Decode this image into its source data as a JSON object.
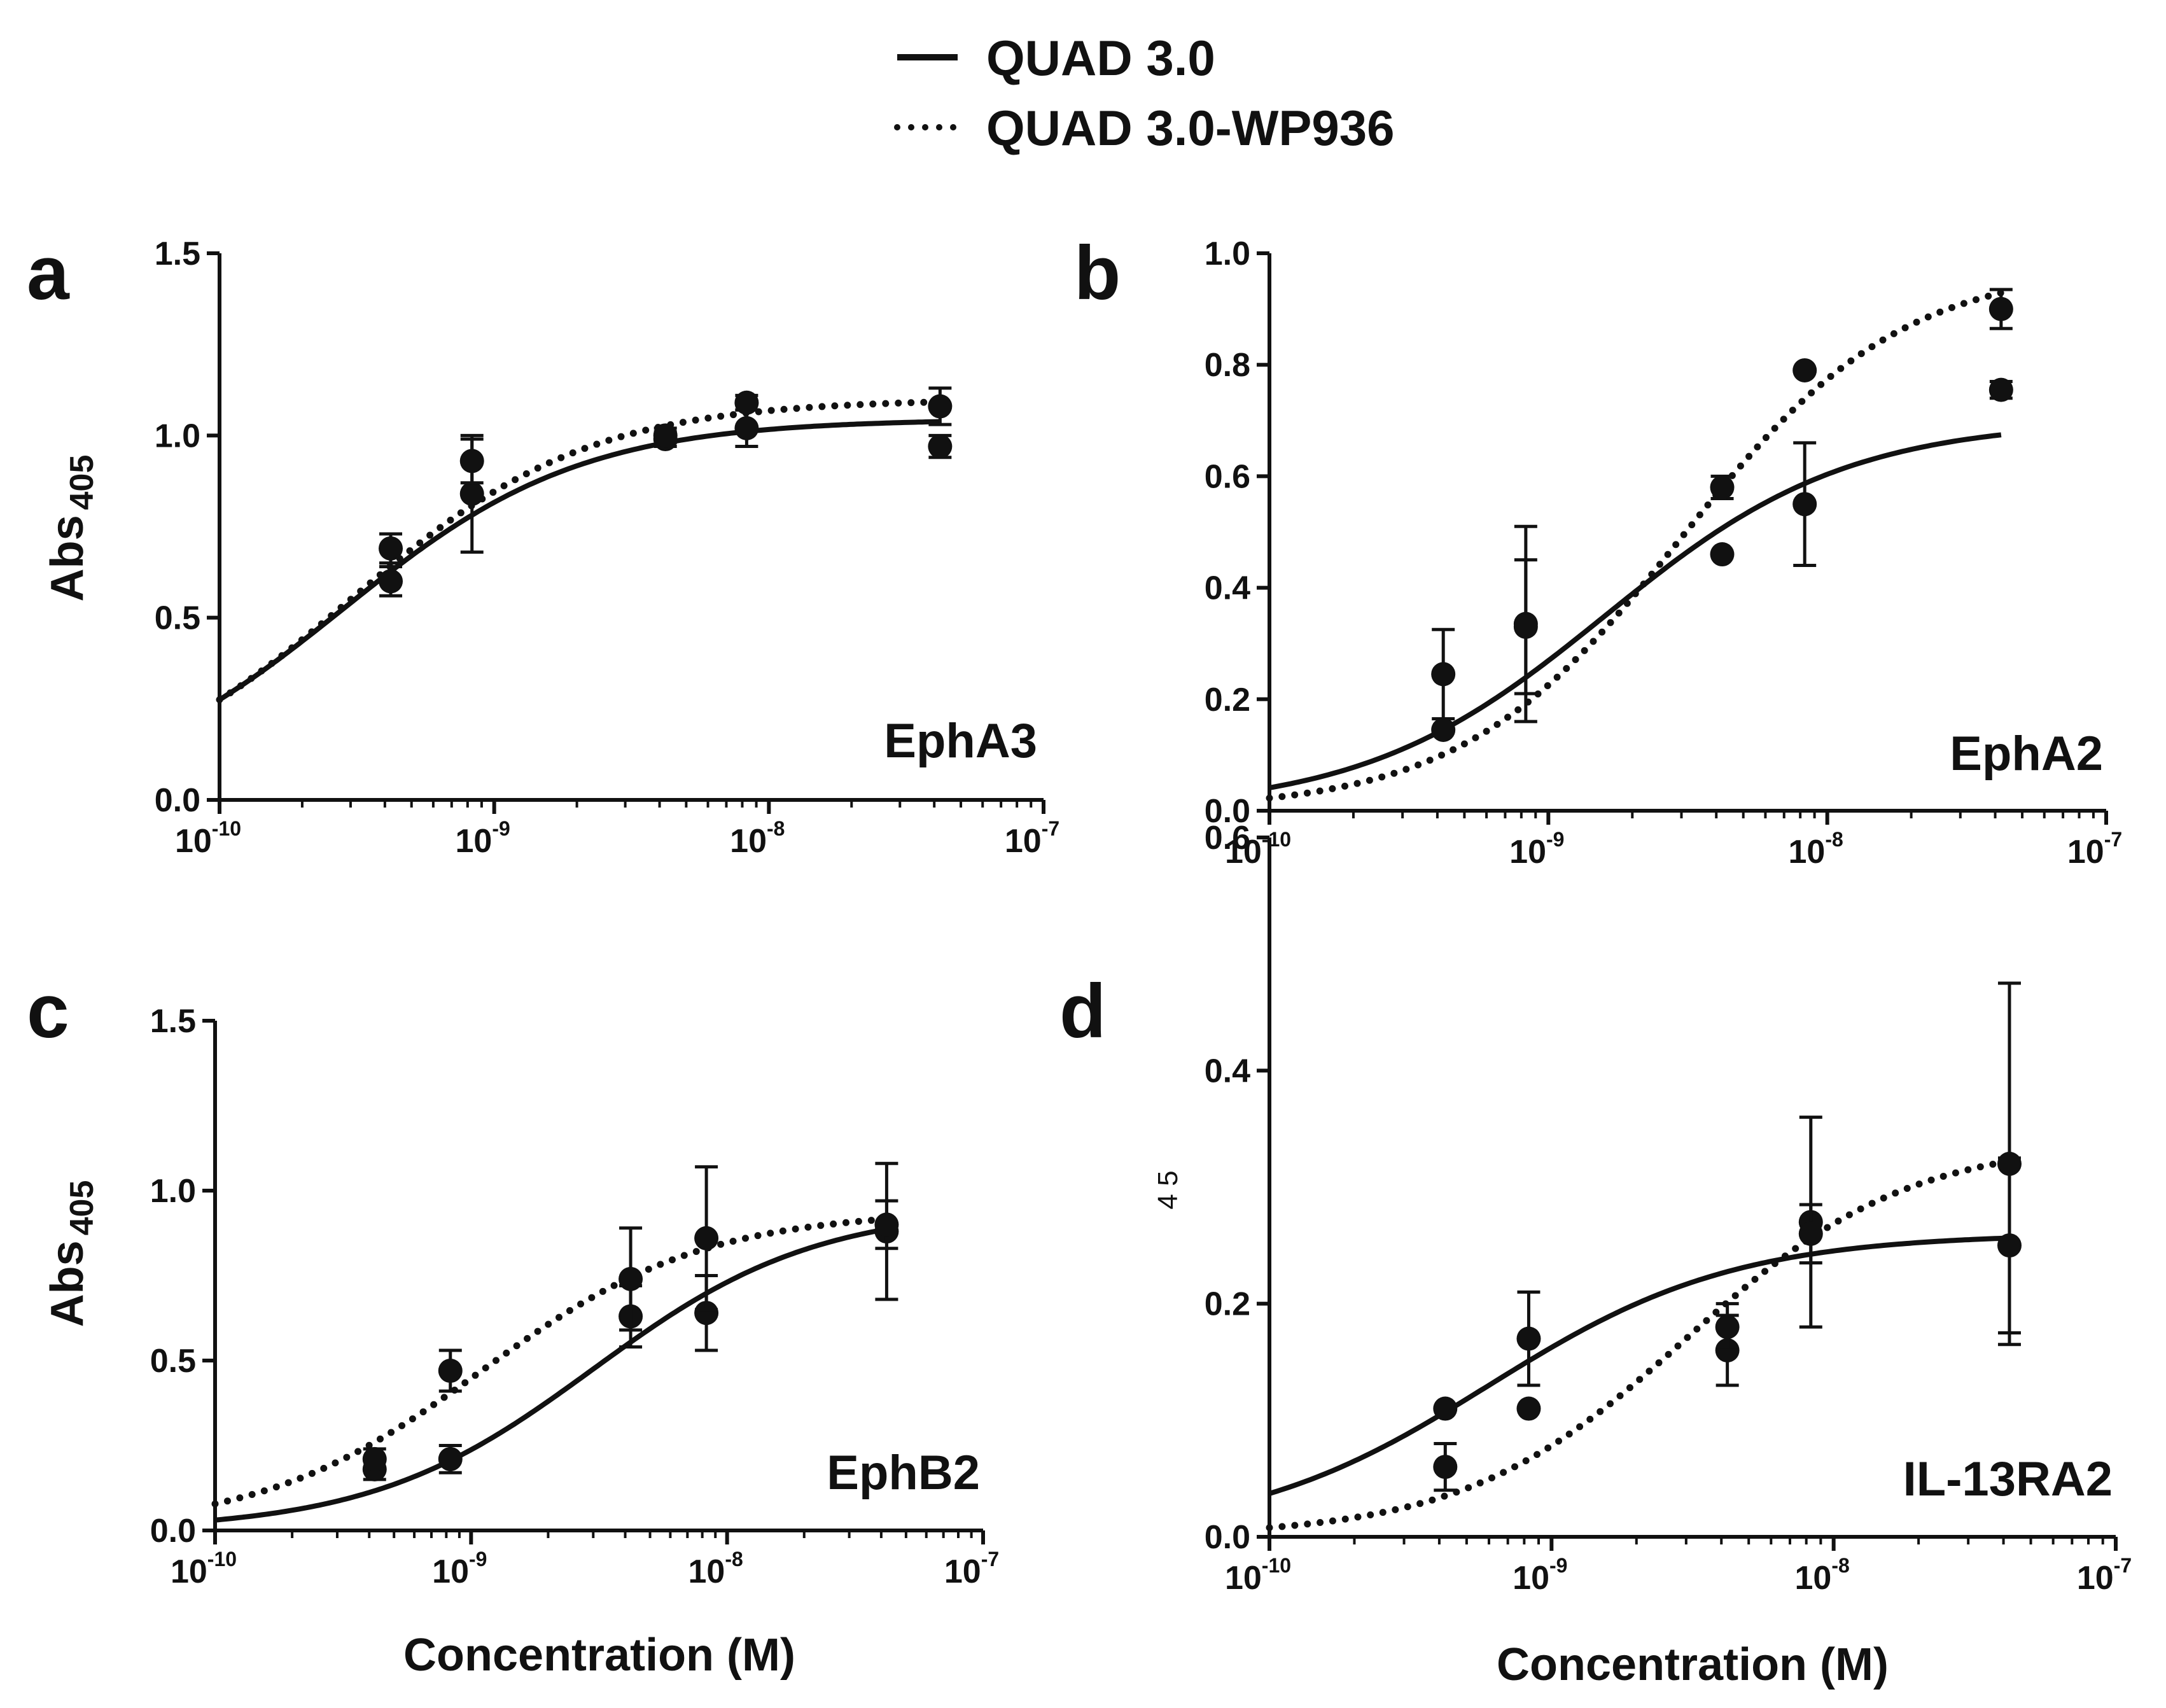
{
  "legend": [
    {
      "label": "QUAD 3.0",
      "style": "solid"
    },
    {
      "label": "QUAD 3.0-WP936",
      "style": "dotted"
    }
  ],
  "chart_data": [
    {
      "type": "scatter",
      "panel": "a",
      "target_label": "EphA3",
      "xlabel": "",
      "ylabel": "Abs",
      "ylabel_sub": "405",
      "xscale": "log",
      "xlim": [
        1e-10,
        1e-07
      ],
      "ylim": [
        0,
        1.5
      ],
      "yticks": [
        "0.0",
        "0.5",
        "1.0",
        "1.5"
      ],
      "xticks": [
        {
          "base": "10",
          "exp": "-10"
        },
        {
          "base": "10",
          "exp": "-9"
        },
        {
          "base": "10",
          "exp": "-8"
        },
        {
          "base": "10",
          "exp": "-7"
        }
      ],
      "series": [
        {
          "name": "QUAD 3.0",
          "style": "solid",
          "points": [
            {
              "x": 4.2e-10,
              "y": 0.6,
              "err": 0.04
            },
            {
              "x": 8.3e-10,
              "y": 0.84,
              "err": 0.16
            },
            {
              "x": 4.2e-09,
              "y": 0.99,
              "err": 0.02
            },
            {
              "x": 8.3e-09,
              "y": 1.02,
              "err": 0.05
            },
            {
              "x": 4.2e-08,
              "y": 0.97,
              "err": 0.03
            }
          ],
          "fit": {
            "bottom": 0.0,
            "top": 1.045,
            "ec50": 2.8e-10,
            "hill": 1.0
          }
        },
        {
          "name": "QUAD 3.0-WP936",
          "style": "dotted",
          "points": [
            {
              "x": 4.2e-10,
              "y": 0.69,
              "err": 0.04
            },
            {
              "x": 8.3e-10,
              "y": 0.93,
              "err": 0.06
            },
            {
              "x": 4.2e-09,
              "y": 1.0,
              "err": 0.02
            },
            {
              "x": 8.3e-09,
              "y": 1.09,
              "err": 0.02
            },
            {
              "x": 4.2e-08,
              "y": 1.08,
              "err": 0.05
            }
          ],
          "fit": {
            "bottom": 0.0,
            "top": 1.1,
            "ec50": 3e-10,
            "hill": 1.0
          }
        }
      ]
    },
    {
      "type": "scatter",
      "panel": "b",
      "target_label": "EphA2",
      "xlabel": "",
      "ylabel": "",
      "xscale": "log",
      "xlim": [
        1e-10,
        1e-07
      ],
      "ylim": [
        0,
        1.0
      ],
      "yticks": [
        "0.0",
        "0.2",
        "0.4",
        "0.6",
        "0.8",
        "1.0"
      ],
      "xticks": [
        {
          "base": "10",
          "exp": "-10"
        },
        {
          "base": "10",
          "exp": "-9"
        },
        {
          "base": "10",
          "exp": "-8"
        },
        {
          "base": "10",
          "exp": "-7"
        }
      ],
      "series": [
        {
          "name": "QUAD 3.0",
          "style": "solid",
          "points": [
            {
              "x": 4.2e-10,
              "y": 0.245,
              "err": 0.08
            },
            {
              "x": 8.3e-10,
              "y": 0.335,
              "err": 0.175
            },
            {
              "x": 4.2e-09,
              "y": 0.46,
              "err": 0
            },
            {
              "x": 8.3e-09,
              "y": 0.55,
              "err": 0.11
            },
            {
              "x": 4.2e-08,
              "y": 0.755,
              "err": 0.015
            }
          ],
          "fit": {
            "bottom": 0.0,
            "top": 0.7,
            "ec50": 1.6e-09,
            "hill": 1.0
          }
        },
        {
          "name": "QUAD 3.0-WP936",
          "style": "dotted",
          "points": [
            {
              "x": 4.2e-10,
              "y": 0.145,
              "err": 0
            },
            {
              "x": 8.3e-10,
              "y": 0.33,
              "err": 0.12
            },
            {
              "x": 4.2e-09,
              "y": 0.58,
              "err": 0.02
            },
            {
              "x": 8.3e-09,
              "y": 0.79,
              "err": 0
            },
            {
              "x": 4.2e-08,
              "y": 0.9,
              "err": 0.035
            }
          ],
          "fit": {
            "bottom": 0.0,
            "top": 0.98,
            "ec50": 3e-09,
            "hill": 1.1
          }
        }
      ]
    },
    {
      "type": "scatter",
      "panel": "c",
      "target_label": "EphB2",
      "xlabel": "Concentration (M)",
      "ylabel": "Abs",
      "ylabel_sub": "405",
      "xscale": "log",
      "xlim": [
        1e-10,
        1e-07
      ],
      "ylim": [
        0,
        1.5
      ],
      "yticks": [
        "0.0",
        "0.5",
        "1.0",
        "1.5"
      ],
      "xticks": [
        {
          "base": "10",
          "exp": "-10"
        },
        {
          "base": "10",
          "exp": "-9"
        },
        {
          "base": "10",
          "exp": "-8"
        },
        {
          "base": "10",
          "exp": "-7"
        }
      ],
      "series": [
        {
          "name": "QUAD 3.0",
          "style": "solid",
          "points": [
            {
              "x": 4.2e-10,
              "y": 0.18,
              "err": 0.03
            },
            {
              "x": 8.3e-10,
              "y": 0.21,
              "err": 0.04
            },
            {
              "x": 4.2e-09,
              "y": 0.63,
              "err": 0.09
            },
            {
              "x": 8.3e-09,
              "y": 0.64,
              "err": 0.11
            },
            {
              "x": 4.2e-08,
              "y": 0.88,
              "err": 0.2
            }
          ],
          "fit": {
            "bottom": 0.0,
            "top": 0.95,
            "ec50": 3e-09,
            "hill": 1.0
          }
        },
        {
          "name": "QUAD 3.0-WP936",
          "style": "dotted",
          "points": [
            {
              "x": 4.2e-10,
              "y": 0.21,
              "err": 0.03
            },
            {
              "x": 8.3e-10,
              "y": 0.47,
              "err": 0.06
            },
            {
              "x": 4.2e-09,
              "y": 0.74,
              "err": 0.15
            },
            {
              "x": 8.3e-09,
              "y": 0.86,
              "err": 0.21
            },
            {
              "x": 4.2e-08,
              "y": 0.9,
              "err": 0.07
            }
          ],
          "fit": {
            "bottom": 0.0,
            "top": 0.94,
            "ec50": 1.1e-09,
            "hill": 1.0
          }
        }
      ]
    },
    {
      "type": "scatter",
      "panel": "d",
      "target_label": "IL-13RA2",
      "xlabel": "Concentration (M)",
      "ylabel": "4 5",
      "xscale": "log",
      "xlim": [
        1e-10,
        1e-07
      ],
      "ylim": [
        0,
        0.6
      ],
      "yticks": [
        "0.0",
        "0.2",
        "0.4",
        "0.6"
      ],
      "xticks": [
        {
          "base": "10",
          "exp": "-10"
        },
        {
          "base": "10",
          "exp": "-9"
        },
        {
          "base": "10",
          "exp": "-8"
        },
        {
          "base": "10",
          "exp": "-7"
        }
      ],
      "series": [
        {
          "name": "QUAD 3.0",
          "style": "solid",
          "points": [
            {
              "x": 4.2e-10,
              "y": 0.11,
              "err": 0
            },
            {
              "x": 8.3e-10,
              "y": 0.17,
              "err": 0.04
            },
            {
              "x": 4.2e-09,
              "y": 0.16,
              "err": 0.03
            },
            {
              "x": 8.3e-09,
              "y": 0.27,
              "err": 0.09
            },
            {
              "x": 4.2e-08,
              "y": 0.25,
              "err": 0.075
            }
          ],
          "fit": {
            "bottom": 0.0,
            "top": 0.26,
            "ec50": 6e-10,
            "hill": 1.0
          }
        },
        {
          "name": "QUAD 3.0-WP936",
          "style": "dotted",
          "points": [
            {
              "x": 4.2e-10,
              "y": 0.06,
              "err": 0.02
            },
            {
              "x": 8.3e-10,
              "y": 0.11,
              "err": 0
            },
            {
              "x": 4.2e-09,
              "y": 0.18,
              "err": 0.02
            },
            {
              "x": 8.3e-09,
              "y": 0.26,
              "err": 0.025
            },
            {
              "x": 4.2e-08,
              "y": 0.32,
              "err": 0.155
            }
          ],
          "fit": {
            "bottom": 0.0,
            "top": 0.34,
            "ec50": 3e-09,
            "hill": 1.1
          }
        }
      ]
    }
  ]
}
